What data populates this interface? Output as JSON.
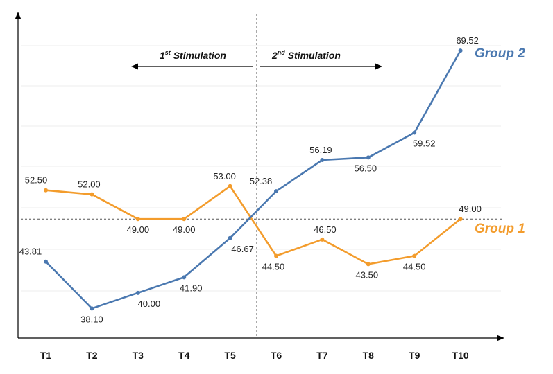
{
  "chart_data": {
    "type": "line",
    "categories": [
      "T1",
      "T2",
      "T3",
      "T4",
      "T5",
      "T6",
      "T7",
      "T8",
      "T9",
      "T10"
    ],
    "series": [
      {
        "name": "Group 1",
        "color": "#f39c2c",
        "values": [
          52.5,
          52.0,
          49.0,
          49.0,
          53.0,
          44.5,
          46.5,
          43.5,
          44.5,
          49.0
        ],
        "labels": [
          "52.50",
          "52.00",
          "49.00",
          "49.00",
          "53.00",
          "44.50",
          "46.50",
          "43.50",
          "44.50",
          "49.00"
        ]
      },
      {
        "name": "Group 2",
        "color": "#4a78b0",
        "values": [
          43.81,
          38.1,
          40.0,
          41.9,
          46.67,
          52.38,
          56.19,
          56.5,
          59.52,
          69.52
        ],
        "labels": [
          "43.81",
          "38.10",
          "40.00",
          "41.90",
          "46.67",
          "52.38",
          "56.19",
          "56.50",
          "59.52",
          "69.52"
        ]
      }
    ],
    "ylim": [
      34.5,
      74
    ],
    "grid": true,
    "reference_line": 49.0,
    "annotations": {
      "first": {
        "num": "1",
        "sup": "st",
        "text": " Stimulation"
      },
      "second": {
        "num": "2",
        "sup": "nd",
        "text": " Stimulation"
      }
    }
  }
}
